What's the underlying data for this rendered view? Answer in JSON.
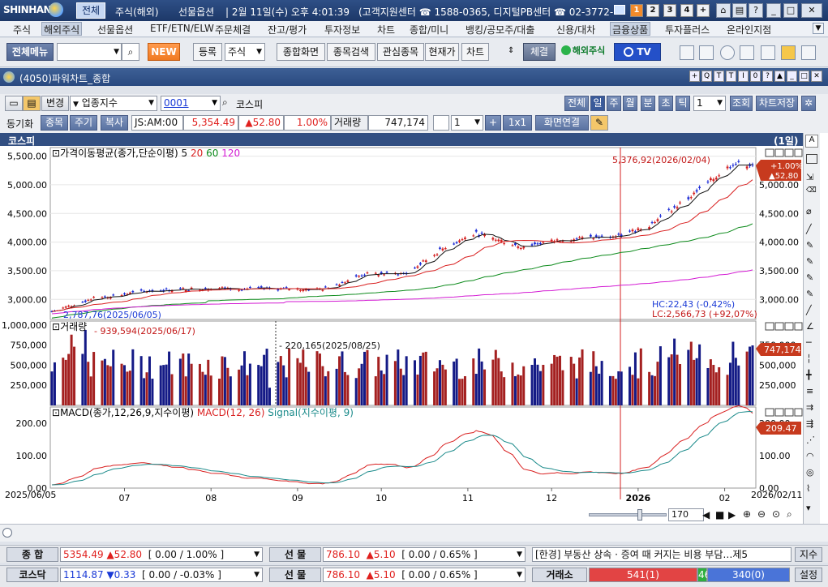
{
  "window": {
    "logo": "SHINHAN",
    "tab_selected": "전체",
    "tab_overseas": "주식(해외)",
    "tab_futures": "선물옵션",
    "datetime": "2월 11일(수) 오후 4:01:39",
    "center": "(고객지원센터 ☎ 1588-0365, 디지털PB센터 ☎ 02-3772-",
    "screens": [
      "1",
      "2",
      "3",
      "4",
      "+"
    ]
  },
  "menu": [
    "주식",
    "해외주식",
    "선물옵션",
    "ETF/ETN/ELW",
    "주문체결",
    "잔고/평가",
    "투자정보",
    "차트",
    "종합/미니",
    "뱅킹/공모주/대출",
    "신용/대차",
    "금융상품",
    "투자플러스",
    "온라인지점"
  ],
  "toolbar": {
    "all_menu": "전체메뉴",
    "new_badge": "NEW",
    "register": "등록",
    "stock_select": "주식",
    "buttons": [
      "종합화면",
      "종목검색",
      "관심종목",
      "현재가",
      "차트"
    ],
    "execute": "체결",
    "overseas_stock": "해외주식",
    "tv_label": "TV"
  },
  "subwindow": {
    "title": "(4050)파워차트_종합"
  },
  "controls": {
    "change": "변경",
    "index_type": "업종지수",
    "code": "0001",
    "name": "코스피",
    "sync_label": "동기화",
    "sync_btns": [
      "종목",
      "주기",
      "복사"
    ],
    "tick": "JS:AM:00",
    "price": "5,354.49",
    "change_val": "▲52.80",
    "pct": "1.00%",
    "vol_label": "거래량",
    "volume": "747,174",
    "count": "1",
    "one_by_one": "1x1",
    "screen_link": "화면연결",
    "period_btns": [
      "전체",
      "일",
      "주",
      "월",
      "분",
      "초",
      "틱"
    ],
    "period_count": "1",
    "lookup": "조회",
    "save": "차트저장"
  },
  "chart": {
    "section": "코스피",
    "period_tag": "(1일)",
    "price_legend": "가격이동평균(종가,단순이평) 5 20 60 120",
    "ma_nums": [
      "5",
      "20",
      "60",
      "120"
    ],
    "high_note": "5,376,92(2026/02/04)",
    "low_note": "2,787,76(2025/06/05)",
    "hc_note": "HC:22,43 (-0,42%)",
    "lc_note": "LC:2,566,73 (+92,07%)",
    "right_pct": "+1.00%",
    "right_chg": "▲52,80",
    "right_price": "5,354.49",
    "vol_legend": "거래량",
    "vol_high_note": "939,594(2025/06/17)",
    "vol_low_note": "220,165(2025/08/25)",
    "vol_tag": "747,174",
    "macd_legend": "MACD(종가,12,26,9,지수이평)",
    "macd_name": "MACD(12, 26)",
    "signal_name": "Signal(지수이평, 9)",
    "macd_tag": "209.47",
    "x_start": "2025/06/05",
    "x_end": "2026/02/11",
    "x_labels": [
      "07",
      "08",
      "09",
      "10",
      "11",
      "12",
      "2026",
      "02"
    ],
    "price_ticks": [
      "5,500.00",
      "5,000.00",
      "4,500.00",
      "4,000.00",
      "3,500.00",
      "3,000.00"
    ],
    "vol_ticks": [
      "1,000,000",
      "750,000",
      "500,000",
      "250,000"
    ],
    "macd_ticks": [
      "200.00",
      "100.00",
      "0.00"
    ],
    "zoom_value": "170"
  },
  "status": {
    "row1": {
      "label1": "종 합",
      "v1": "5354.49",
      "c1": "▲52.80",
      "bracket1": "[ 0.00 / 1.00% ]",
      "label2": "선 물",
      "v2": "786.10",
      "c2": "▲5.10",
      "bracket2": "[ 0.00 / 0.65% ]",
      "news": "[한경] 부동산 상속 · 증여 때 커지는 비용 부담…제5",
      "news_btn": "지수"
    },
    "row2": {
      "label1": "코스닥",
      "v1": "1114.87",
      "c1": "▼0.33",
      "bracket1": "[ 0.00 / -0.03% ]",
      "label2": "선 물",
      "v2": "786.10",
      "c2": "▲5.10",
      "bracket2": "[ 0.00 / 0.65% ]",
      "exch": "거래소",
      "up": "541(1)",
      "mid": "46",
      "down": "340(0)",
      "settings": "설정"
    }
  },
  "chart_data": {
    "type": "candlestick",
    "title": "코스피",
    "x_range": [
      "2025/06/05",
      "2026/02/11"
    ],
    "price_ylim": [
      2650,
      5650
    ],
    "ma_periods": [
      5,
      20,
      60,
      120
    ],
    "close_monthly": [
      {
        "x": "2025/06",
        "y": 3050
      },
      {
        "x": "2025/07",
        "y": 3200
      },
      {
        "x": "2025/08",
        "y": 3180
      },
      {
        "x": "2025/09",
        "y": 3420
      },
      {
        "x": "2025/10",
        "y": 4100
      },
      {
        "x": "2025/11",
        "y": 3950
      },
      {
        "x": "2025/12",
        "y": 4200
      },
      {
        "x": "2026/01",
        "y": 4950
      },
      {
        "x": "2026/02",
        "y": 5354.49
      }
    ],
    "high": {
      "x": "2026/02/04",
      "y": 5376.92
    },
    "low": {
      "x": "2025/06/05",
      "y": 2787.76
    },
    "volume_ylim": [
      0,
      1050000
    ],
    "volume_max": {
      "x": "2025/06/17",
      "y": 939594
    },
    "volume_min": {
      "x": "2025/08/25",
      "y": 220165
    },
    "volume_last": 747174,
    "macd_ylim": [
      0,
      250
    ],
    "macd_last": 209.47
  }
}
